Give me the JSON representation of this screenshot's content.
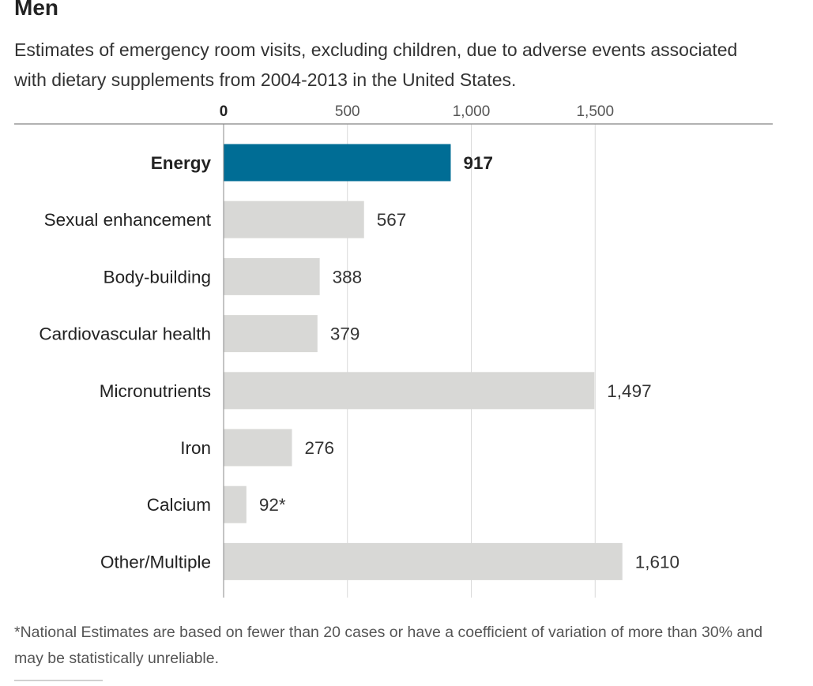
{
  "header": {
    "title": "Men",
    "subtitle": "Estimates of emergency room visits, excluding children, due to adverse events associated with dietary supplements from 2004-2013 in the United States."
  },
  "chart_data": {
    "type": "bar",
    "orientation": "horizontal",
    "categories": [
      "Energy",
      "Sexual enhancement",
      "Body-building",
      "Cardiovascular health",
      "Micronutrients",
      "Iron",
      "Calcium",
      "Other/Multiple"
    ],
    "values": [
      917,
      567,
      388,
      379,
      1497,
      276,
      92,
      1610
    ],
    "value_labels": [
      "917",
      "567",
      "388",
      "379",
      "1,497",
      "276",
      "92*",
      "1,610"
    ],
    "highlighted_category": "Energy",
    "xlim": [
      0,
      2200
    ],
    "x_ticks": [
      0,
      500,
      1000,
      1500
    ],
    "x_tick_labels": [
      "0",
      "500",
      "1,000",
      "1,500"
    ],
    "axis_position": "top",
    "grid": true,
    "colors": {
      "highlight": "#006d95",
      "default": "#d8d8d6",
      "gridline": "#d9d9d9",
      "axis": "#999999"
    }
  },
  "footnote": {
    "text": "*National Estimates are based on fewer than 20 cases or have a coefficient of variation of more than 30% and may be statistically unreliable."
  }
}
